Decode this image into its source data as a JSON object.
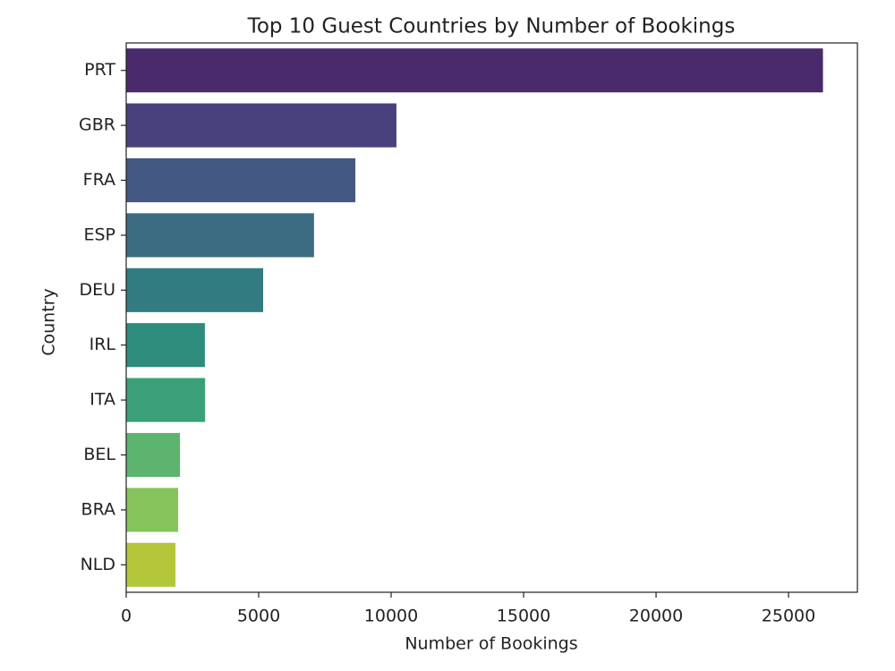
{
  "chart_data": {
    "type": "barh",
    "title": "Top 10 Guest Countries by Number of Bookings",
    "x_label": "Number of Bookings",
    "y_label": "Country",
    "categories": [
      "PRT",
      "GBR",
      "FRA",
      "ESP",
      "DEU",
      "IRL",
      "ITA",
      "BEL",
      "BRA",
      "NLD"
    ],
    "values": [
      26300,
      10200,
      8650,
      7090,
      5170,
      2970,
      2980,
      2030,
      1960,
      1860
    ],
    "colors": [
      "#4a2a6a",
      "#48417e",
      "#435882",
      "#3b6c82",
      "#327b80",
      "#2d8c7c",
      "#3aa078",
      "#5cb46f",
      "#86c35a",
      "#b4c73b"
    ],
    "xlim": [
      0,
      27600
    ],
    "xticks": [
      0,
      5000,
      10000,
      15000,
      20000,
      25000
    ],
    "grid": false
  }
}
